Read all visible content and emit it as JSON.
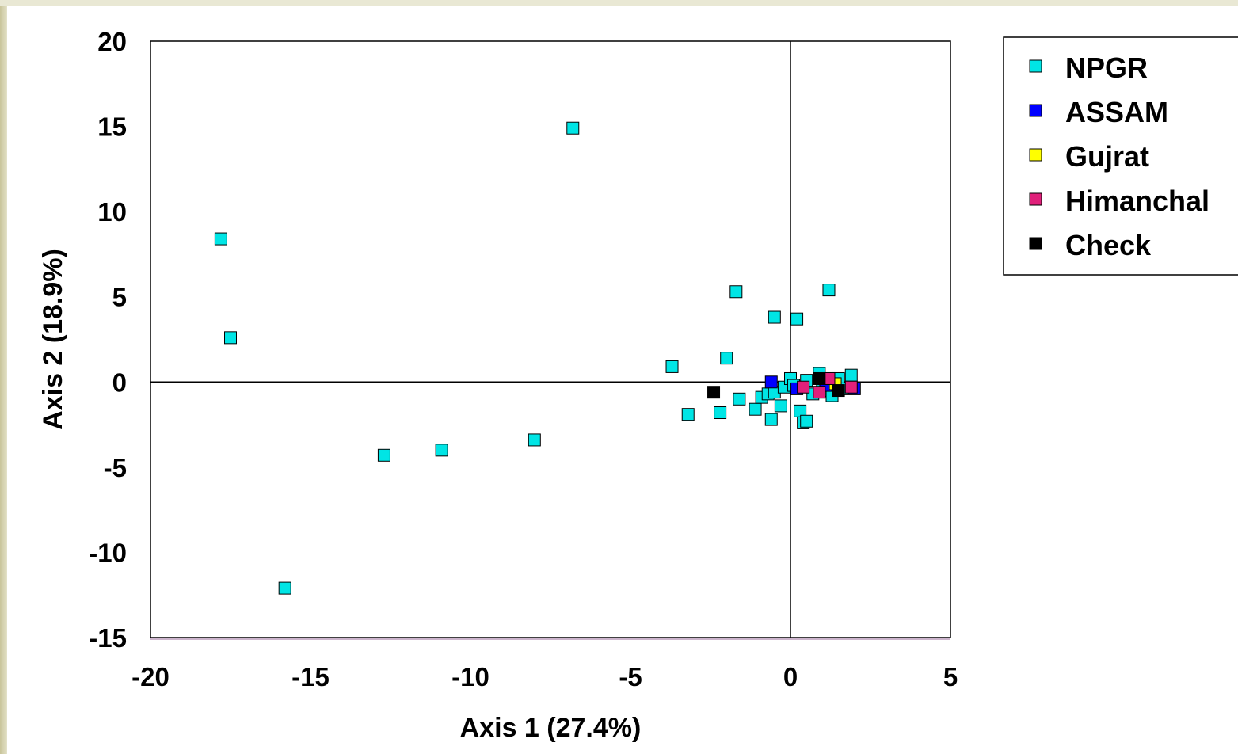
{
  "chart_data": {
    "type": "scatter",
    "xlabel": "Axis 1 (27.4%)",
    "ylabel": "Axis 2 (18.9%)",
    "xlim": [
      -20,
      5
    ],
    "ylim": [
      -15,
      20
    ],
    "x_ticks": [
      "-20",
      "-15",
      "-10",
      "-5",
      "0",
      "5"
    ],
    "y_ticks": [
      "20",
      "15",
      "10",
      "5",
      "0",
      "-5",
      "-10",
      "-15"
    ],
    "x_tick_values": [
      -20,
      -15,
      -10,
      -5,
      0,
      5
    ],
    "y_tick_values": [
      20,
      15,
      10,
      5,
      0,
      -5,
      -10,
      -15
    ],
    "grid": false,
    "zero_lines": true,
    "legend_position": "top-right",
    "series": [
      {
        "name": "NPGR",
        "color": "#00e5e5",
        "points": [
          [
            -6.8,
            14.9
          ],
          [
            -17.8,
            8.4
          ],
          [
            -17.5,
            2.6
          ],
          [
            -15.8,
            -12.1
          ],
          [
            -12.7,
            -4.3
          ],
          [
            -10.9,
            -4.0
          ],
          [
            -8.0,
            -3.4
          ],
          [
            -3.7,
            0.9
          ],
          [
            -3.2,
            -1.9
          ],
          [
            -2.2,
            -1.8
          ],
          [
            -2.0,
            1.4
          ],
          [
            -1.7,
            5.3
          ],
          [
            -1.6,
            -1.0
          ],
          [
            -1.1,
            -1.6
          ],
          [
            -0.9,
            -0.9
          ],
          [
            -0.7,
            -0.7
          ],
          [
            -0.6,
            -2.2
          ],
          [
            -0.5,
            3.8
          ],
          [
            -0.5,
            -0.6
          ],
          [
            -0.3,
            -1.4
          ],
          [
            -0.2,
            -0.3
          ],
          [
            0.0,
            0.2
          ],
          [
            0.1,
            -0.2
          ],
          [
            0.2,
            3.7
          ],
          [
            0.3,
            -1.7
          ],
          [
            0.4,
            -2.4
          ],
          [
            0.5,
            -2.3
          ],
          [
            0.5,
            0.1
          ],
          [
            0.7,
            -0.7
          ],
          [
            0.9,
            0.5
          ],
          [
            1.0,
            -0.5
          ],
          [
            1.2,
            5.4
          ],
          [
            1.3,
            -0.8
          ],
          [
            1.5,
            0.2
          ],
          [
            1.6,
            -0.4
          ],
          [
            1.9,
            0.4
          ]
        ]
      },
      {
        "name": "ASSAM",
        "color": "#0000ff",
        "points": [
          [
            -0.6,
            0.0
          ],
          [
            0.2,
            -0.4
          ],
          [
            1.1,
            -0.2
          ],
          [
            2.0,
            -0.4
          ]
        ]
      },
      {
        "name": "Gujrat",
        "color": "#ffff00",
        "points": [
          [
            1.4,
            -0.1
          ]
        ]
      },
      {
        "name": "Himanchal",
        "color": "#e0207a",
        "points": [
          [
            0.4,
            -0.3
          ],
          [
            0.9,
            -0.6
          ],
          [
            1.2,
            0.2
          ],
          [
            1.9,
            -0.3
          ]
        ]
      },
      {
        "name": "Check",
        "color": "#000000",
        "points": [
          [
            -2.4,
            -0.6
          ],
          [
            0.9,
            0.2
          ],
          [
            1.5,
            -0.5
          ]
        ]
      }
    ]
  }
}
